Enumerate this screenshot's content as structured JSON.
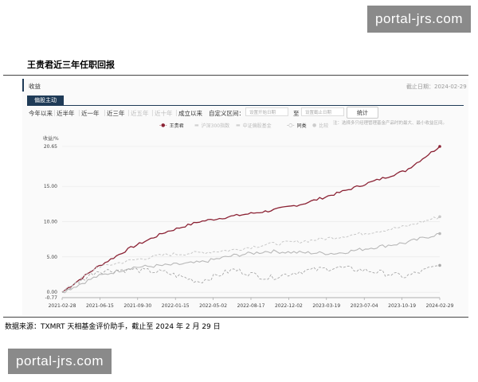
{
  "watermark": {
    "text": "portal-jrs.com"
  },
  "section_title": "王贵君近三年任职回报",
  "panel": {
    "header": "收益",
    "as_of": "截止日期：2024-02-29",
    "tab": "偏股主动",
    "periods": [
      {
        "label": "今年以来",
        "disabled": false
      },
      {
        "label": "近半年",
        "disabled": false
      },
      {
        "label": "近一年",
        "disabled": false
      },
      {
        "label": "近三年",
        "disabled": false
      },
      {
        "label": "近五年",
        "disabled": true
      },
      {
        "label": "近十年",
        "disabled": true
      },
      {
        "label": "成立以来",
        "disabled": false
      }
    ],
    "custom_range_label": "自定义区间：",
    "start_placeholder": "设置开始日期",
    "range_sep": "至",
    "end_placeholder": "设置截止日期",
    "calc_button": "统计",
    "note": "注：选择多只经理管理基金产品时的最大、最小收益区间。"
  },
  "colors": {
    "main_line": "#8b2234",
    "benchmark_a": "#b8b8b8",
    "benchmark_b": "#c8c8c8",
    "peer": "#a8a8a8",
    "tab_bg": "#1f3b57"
  },
  "chart_data": {
    "type": "line",
    "ylabel": "收益/%",
    "ylim": [
      -0.77,
      20.65
    ],
    "y_ticks": [
      "20.65",
      "15.00",
      "10.00",
      "5.00",
      "0.00",
      "-0.77"
    ],
    "x_ticks": [
      "2021-02-28",
      "2021-06-15",
      "2021-09-30",
      "2022-01-15",
      "2022-05-02",
      "2022-08-17",
      "2022-12-02",
      "2023-03-19",
      "2023-07-04",
      "2023-10-19",
      "2024-02-29"
    ],
    "series": [
      {
        "name": "王贵君",
        "style": "solid-dark",
        "values": [
          0,
          3.5,
          6.3,
          8.5,
          10.0,
          10.8,
          11.5,
          12.5,
          14.0,
          15.6,
          17.2,
          20.65
        ]
      },
      {
        "name": "",
        "style": "solid-gray",
        "values": [
          0,
          2.2,
          3.5,
          3.8,
          4.2,
          5.2,
          5.8,
          5.6,
          5.5,
          6.3,
          7.0,
          8.3
        ]
      },
      {
        "name": "",
        "style": "dashed-gray",
        "values": [
          0,
          3.5,
          4.5,
          5.3,
          5.6,
          6.0,
          6.8,
          7.2,
          7.8,
          8.5,
          9.3,
          10.7
        ]
      },
      {
        "name": "同类",
        "style": "dashed-light",
        "values": [
          0,
          3.0,
          3.2,
          2.8,
          1.5,
          3.2,
          2.0,
          3.0,
          3.5,
          3.0,
          2.2,
          3.8
        ]
      }
    ],
    "legend": [
      {
        "label": "王贵君",
        "muted": false
      },
      {
        "label": "沪深300指数",
        "muted": true
      },
      {
        "label": "中证偏股基金",
        "muted": true
      },
      {
        "label": "同类",
        "muted": false
      },
      {
        "label": "比较",
        "muted": true
      }
    ]
  },
  "source": "数据来源：TXMRT 天相基金评价助手，截止至 2024 年 2 月 29 日"
}
